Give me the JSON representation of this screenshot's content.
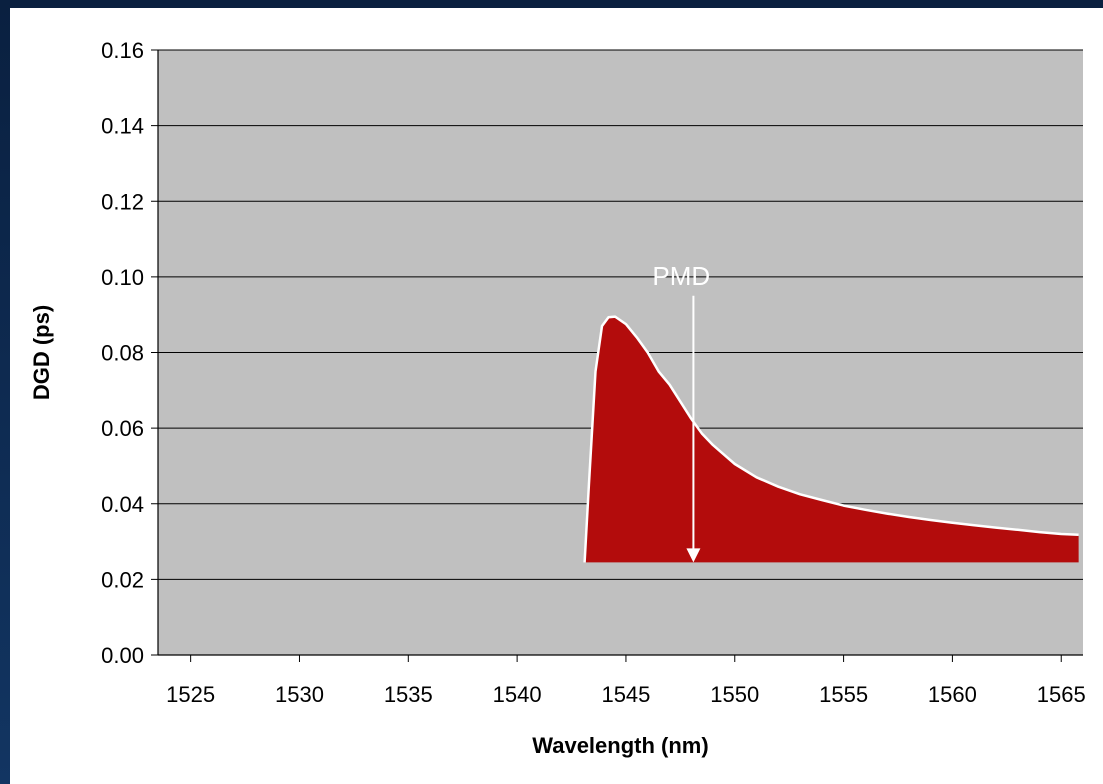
{
  "chart_data": {
    "type": "area",
    "xlabel": "Wavelength (nm)",
    "ylabel": "DGD (ps)",
    "xlim": [
      1523.5,
      1566
    ],
    "ylim": [
      0,
      0.16
    ],
    "x_ticks": [
      "1525",
      "1530",
      "1535",
      "1540",
      "1545",
      "1550",
      "1555",
      "1560",
      "1565"
    ],
    "y_ticks": [
      "0.00",
      "0.02",
      "0.04",
      "0.06",
      "0.08",
      "0.10",
      "0.12",
      "0.14",
      "0.16"
    ],
    "grid": true,
    "plot_background": "#c0c0c0",
    "fill_color": "#b30c0c",
    "baseline": 0.0245,
    "series": [
      {
        "x": [
          1543.1,
          1543.3,
          1543.6,
          1543.9,
          1544.2,
          1544.5,
          1545.0,
          1545.5,
          1546.0,
          1546.5,
          1547.0,
          1547.5,
          1548.0,
          1548.5,
          1549.0,
          1549.5,
          1550.0,
          1551.0,
          1552.0,
          1553.0,
          1554.0,
          1555.0,
          1556.0,
          1557.0,
          1558.0,
          1559.0,
          1560.0,
          1561.0,
          1562.0,
          1563.0,
          1564.0,
          1565.0,
          1565.8
        ],
        "y": [
          0.0245,
          0.045,
          0.075,
          0.087,
          0.0893,
          0.0895,
          0.0875,
          0.084,
          0.08,
          0.075,
          0.0715,
          0.067,
          0.0625,
          0.0585,
          0.0555,
          0.053,
          0.0505,
          0.047,
          0.0445,
          0.0425,
          0.041,
          0.0395,
          0.0384,
          0.0374,
          0.0365,
          0.0357,
          0.035,
          0.0343,
          0.0337,
          0.0331,
          0.0325,
          0.032,
          0.0318
        ]
      }
    ],
    "annotations": [
      {
        "text": "PMD",
        "x": 1548.1,
        "y_from": 0.095,
        "y_to": 0.0245,
        "arrow": "down"
      }
    ]
  }
}
